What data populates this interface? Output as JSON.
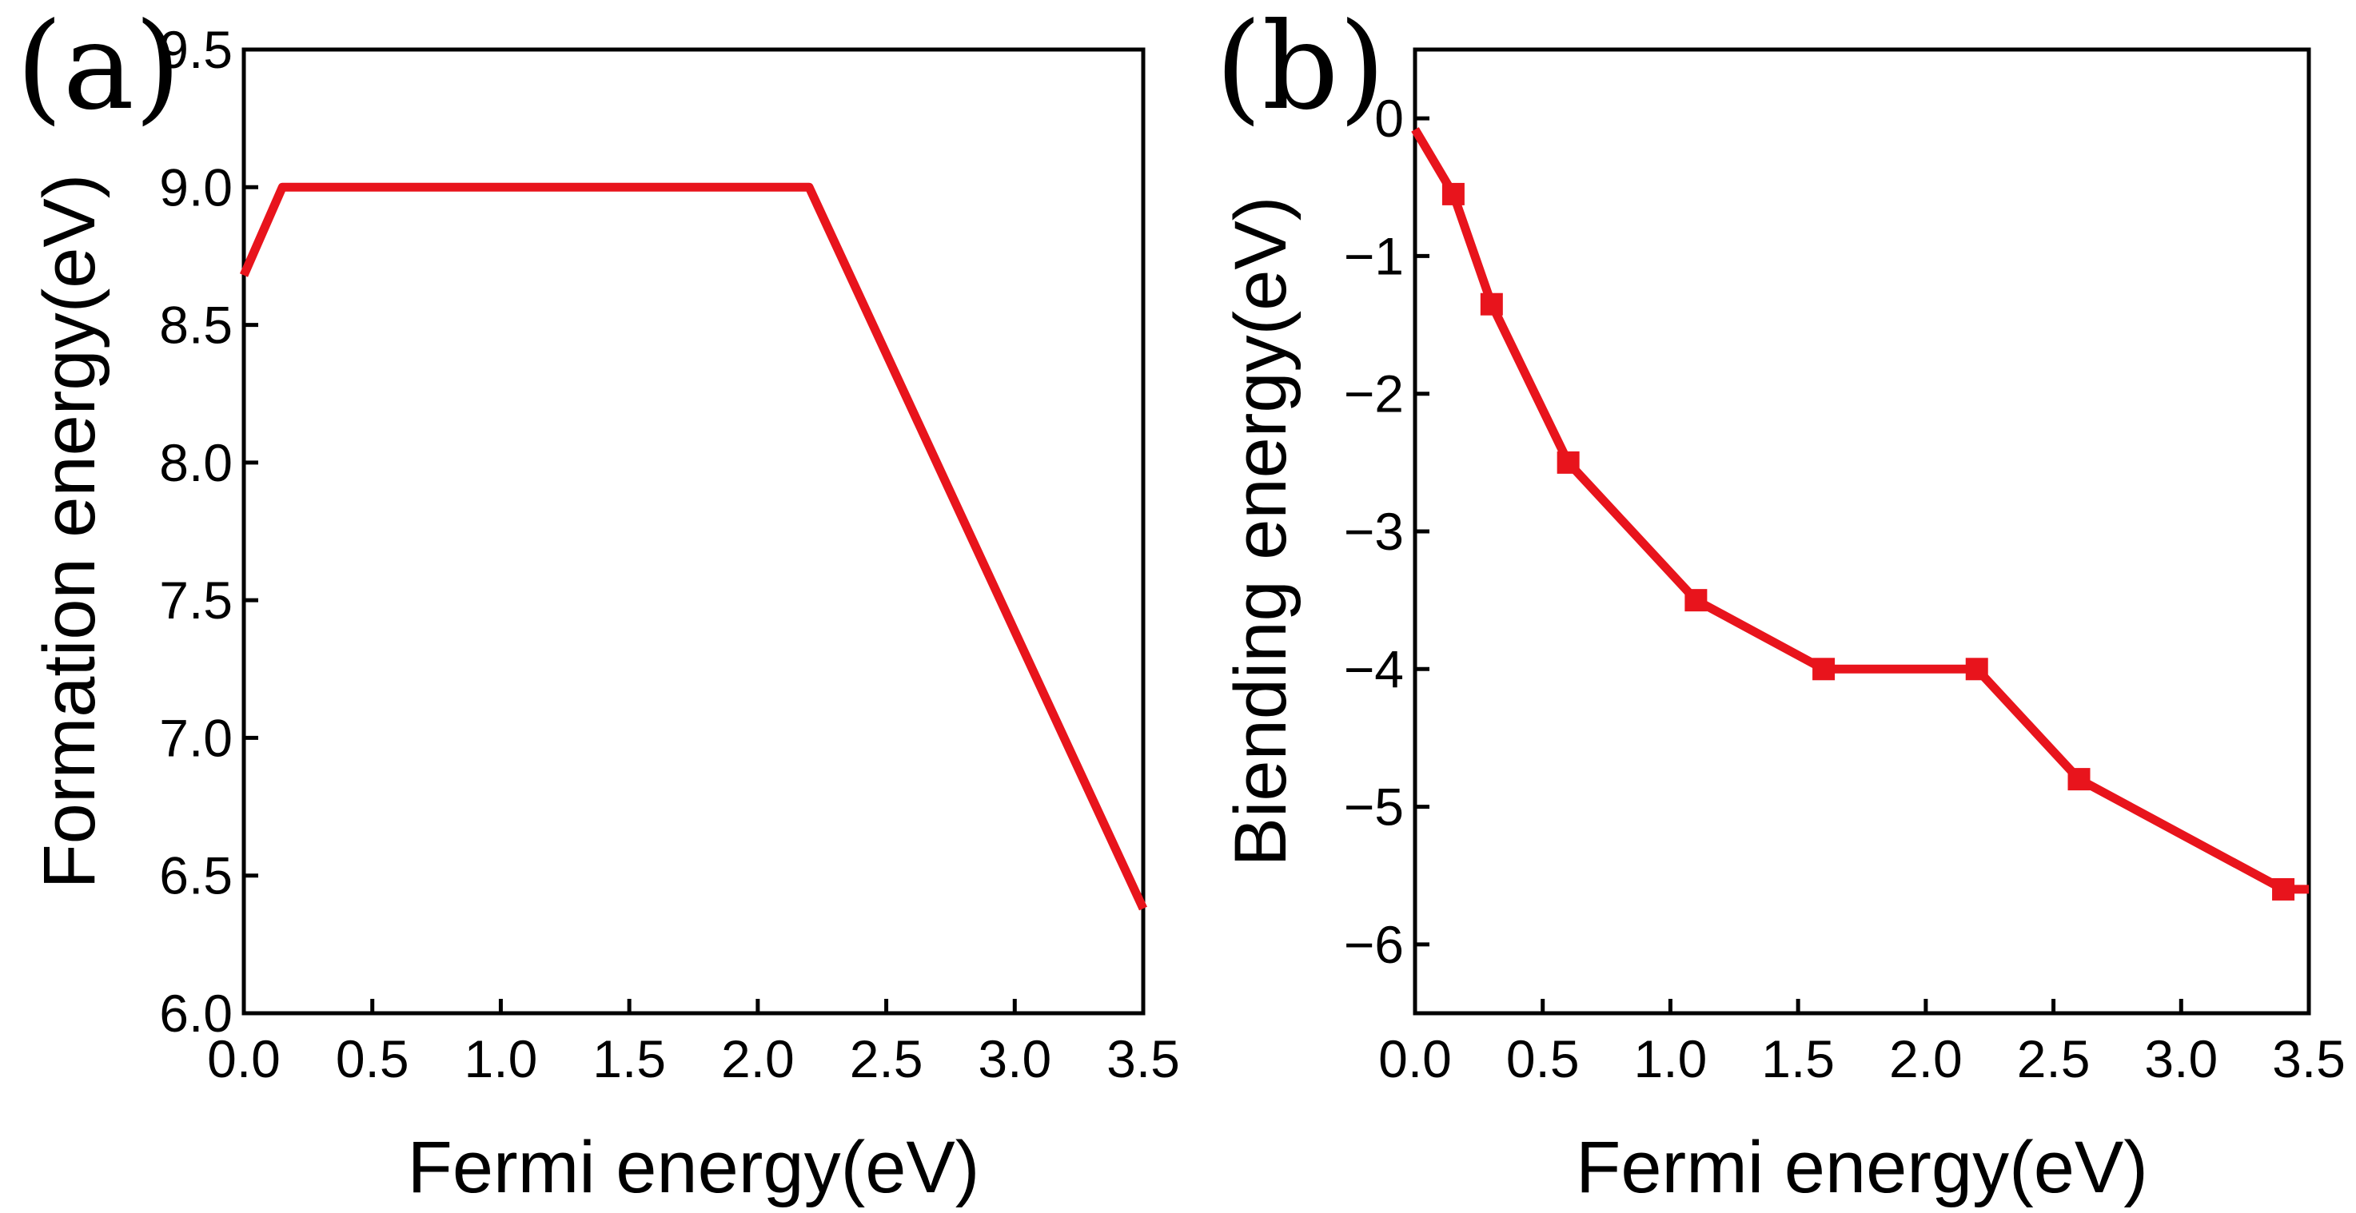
{
  "chart_data": [
    {
      "panel": "(a)",
      "type": "line",
      "xlabel": "Fermi energy(eV)",
      "ylabel": "Formation energy(eV)",
      "xlim": [
        0.0,
        3.5
      ],
      "ylim": [
        6.0,
        9.5
      ],
      "xticks": [
        0.0,
        0.5,
        1.0,
        1.5,
        2.0,
        2.5,
        3.0,
        3.5
      ],
      "yticks": [
        6.0,
        6.5,
        7.0,
        7.5,
        8.0,
        8.5,
        9.0,
        9.5
      ],
      "xtick_labels": [
        "0.0",
        "0.5",
        "1.0",
        "1.5",
        "2.0",
        "2.5",
        "3.0",
        "3.5"
      ],
      "ytick_labels": [
        "6.0",
        "6.5",
        "7.0",
        "7.5",
        "8.0",
        "8.5",
        "9.0",
        "9.5"
      ],
      "color": "#e8141c",
      "markers": false,
      "series": [
        {
          "name": "formation",
          "x": [
            0.0,
            0.15,
            2.2,
            3.5
          ],
          "y": [
            8.68,
            9.0,
            9.0,
            6.38
          ]
        }
      ]
    },
    {
      "panel": "(b)",
      "type": "line",
      "xlabel": "Fermi energy(eV)",
      "ylabel": "Biending energy(eV)",
      "xlim": [
        0.0,
        3.5
      ],
      "ylim": [
        -6.5,
        0.5
      ],
      "xticks": [
        0.0,
        0.5,
        1.0,
        1.5,
        2.0,
        2.5,
        3.0,
        3.5
      ],
      "yticks": [
        0,
        -1,
        -2,
        -3,
        -4,
        -5,
        -6
      ],
      "xtick_labels": [
        "0.0",
        "0.5",
        "1.0",
        "1.5",
        "2.0",
        "2.5",
        "3.0",
        "3.5"
      ],
      "ytick_labels": [
        "0",
        "−1",
        "−2",
        "−3",
        "−4",
        "−5",
        "−6"
      ],
      "color": "#e8141c",
      "markers": true,
      "series": [
        {
          "name": "binding",
          "x": [
            0.0,
            0.15,
            0.3,
            0.6,
            1.1,
            1.6,
            2.2,
            2.6,
            3.4,
            3.5
          ],
          "y": [
            -0.08,
            -0.55,
            -1.35,
            -2.5,
            -3.5,
            -4.0,
            -4.0,
            -4.8,
            -5.6,
            -5.6
          ],
          "marker": [
            false,
            true,
            true,
            true,
            true,
            true,
            true,
            true,
            true,
            false
          ]
        }
      ]
    }
  ]
}
